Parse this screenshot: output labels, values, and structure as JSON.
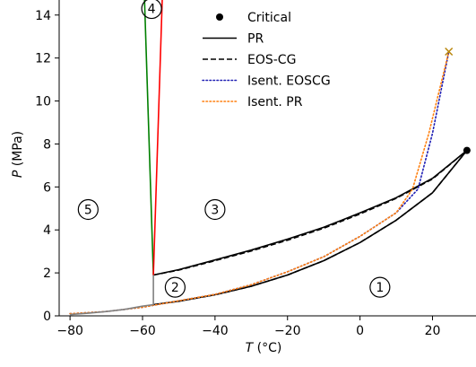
{
  "chart_data": {
    "type": "line",
    "xlabel": "T (°C)",
    "ylabel": "P (MPa)",
    "xlim": [
      -83,
      32
    ],
    "ylim": [
      0,
      14.7
    ],
    "x_ticks": [
      -80,
      -60,
      -40,
      -20,
      0,
      20
    ],
    "x_tick_labels": [
      "−80",
      "−60",
      "−40",
      "−20",
      "0",
      "20"
    ],
    "y_ticks": [
      0,
      2,
      4,
      6,
      8,
      10,
      12,
      14
    ],
    "y_tick_labels": [
      "0",
      "2",
      "4",
      "6",
      "8",
      "10",
      "12",
      "14"
    ],
    "grid": false,
    "legend_position": "top-center",
    "legend": [
      {
        "label": "Critical",
        "marker": "dot",
        "color": "#000000"
      },
      {
        "label": "PR",
        "style": "solid",
        "color": "#000000"
      },
      {
        "label": "EOS-CG",
        "style": "dashed",
        "color": "#000000"
      },
      {
        "label": "Isent. EOSCG",
        "style": "dotted",
        "color": "#1f1fb4"
      },
      {
        "label": "Isent. PR",
        "style": "dotted",
        "color": "#ff7f0e"
      }
    ],
    "critical_point": {
      "x": 29.5,
      "y": 7.7
    },
    "cross_marker": {
      "x": 24.5,
      "y": 12.3
    },
    "region_labels": [
      {
        "text": "1",
        "x": 5.5,
        "y": 1.33
      },
      {
        "text": "2",
        "x": -51,
        "y": 1.33
      },
      {
        "text": "3",
        "x": -40,
        "y": 4.95
      },
      {
        "text": "4",
        "x": -57.5,
        "y": 14.3
      },
      {
        "text": "5",
        "x": -75,
        "y": 4.95
      }
    ],
    "series": [
      {
        "name": "PR",
        "kind": "bubble",
        "color": "#000000",
        "style": "solid",
        "x": [
          -57,
          -50,
          -40,
          -30,
          -20,
          -10,
          0,
          10,
          20,
          29.5
        ],
        "y": [
          0.52,
          0.68,
          0.98,
          1.38,
          1.9,
          2.57,
          3.41,
          4.45,
          5.73,
          7.7
        ]
      },
      {
        "name": "PR",
        "kind": "dew",
        "color": "#000000",
        "style": "solid",
        "x": [
          -57,
          -50,
          -40,
          -30,
          -20,
          -10,
          0,
          10,
          20,
          29.5
        ],
        "y": [
          1.9,
          2.15,
          2.6,
          3.06,
          3.57,
          4.12,
          4.79,
          5.5,
          6.4,
          7.7
        ]
      },
      {
        "name": "EOS-CG",
        "kind": "bubble",
        "color": "#000000",
        "style": "dashed",
        "x": [
          -57,
          -50,
          -40,
          -30,
          -20,
          -10,
          0,
          10,
          20,
          29.5
        ],
        "y": [
          0.52,
          0.68,
          0.98,
          1.38,
          1.9,
          2.57,
          3.41,
          4.45,
          5.73,
          7.7
        ]
      },
      {
        "name": "EOS-CG",
        "kind": "dew",
        "color": "#000000",
        "style": "dashed",
        "x": [
          -57,
          -50,
          -40,
          -30,
          -20,
          -10,
          0,
          10,
          20,
          29.5
        ],
        "y": [
          1.9,
          2.13,
          2.57,
          3.02,
          3.52,
          4.08,
          4.74,
          5.47,
          6.37,
          7.7
        ]
      },
      {
        "name": "Isent. EOSCG",
        "kind": "isentrope",
        "color": "#1f1fb4",
        "style": "dotted",
        "x": [
          -80,
          -70,
          -60,
          -50,
          -40,
          -30,
          -20,
          -10,
          0,
          10,
          16,
          20,
          24.5
        ],
        "y": [
          0.1,
          0.2,
          0.4,
          0.7,
          1.0,
          1.45,
          2.05,
          2.75,
          3.7,
          4.8,
          5.9,
          8.5,
          12.3
        ]
      },
      {
        "name": "Isent. PR",
        "kind": "isentrope",
        "color": "#ff7f0e",
        "style": "dotted",
        "x": [
          -80,
          -70,
          -60,
          -50,
          -40,
          -30,
          -20,
          -10,
          0,
          10,
          14.5,
          19,
          24.5
        ],
        "y": [
          0.1,
          0.2,
          0.4,
          0.7,
          1.0,
          1.45,
          2.05,
          2.75,
          3.7,
          4.8,
          5.9,
          8.5,
          12.3
        ]
      },
      {
        "name": "",
        "kind": "sublimation",
        "color": "#808080",
        "style": "solid",
        "x": [
          -80,
          -75,
          -70,
          -65,
          -60,
          -57
        ],
        "y": [
          0.06,
          0.12,
          0.2,
          0.3,
          0.45,
          0.52
        ]
      },
      {
        "name": "",
        "kind": "triple-vertical",
        "color": "#808080",
        "style": "solid",
        "x": [
          -57,
          -57
        ],
        "y": [
          0.52,
          1.9
        ]
      },
      {
        "name": "",
        "kind": "melting-green",
        "color": "#008000",
        "style": "solid",
        "x": [
          -57,
          -59.5
        ],
        "y": [
          1.9,
          15.0
        ]
      },
      {
        "name": "",
        "kind": "melting-red",
        "color": "#ff0000",
        "style": "solid",
        "x": [
          -57,
          -54.5
        ],
        "y": [
          1.9,
          15.0
        ]
      }
    ]
  }
}
